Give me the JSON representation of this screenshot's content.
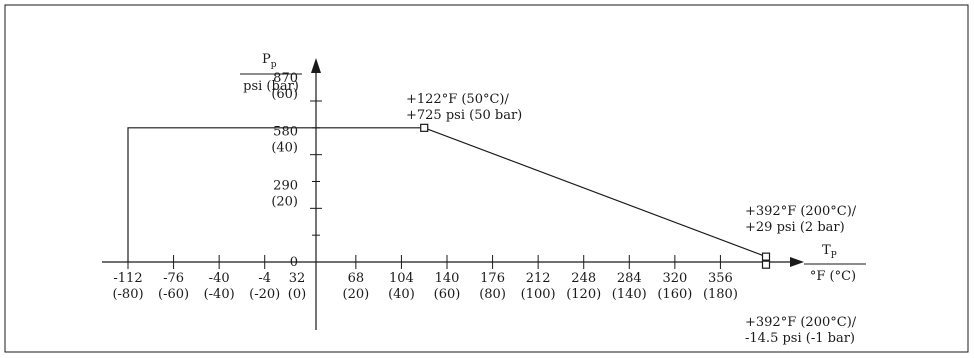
{
  "chart_data": {
    "type": "line",
    "y_axis": {
      "label_main": "P",
      "label_sub": "p",
      "unit": "psi (bar)",
      "ticks": [
        {
          "value": 0,
          "psi": "0",
          "bar": ""
        },
        {
          "value": 290,
          "psi": "290",
          "bar": "(20)"
        },
        {
          "value": 580,
          "psi": "580",
          "bar": "(40)"
        },
        {
          "value": 870,
          "psi": "870",
          "bar": "(60)"
        }
      ]
    },
    "x_axis": {
      "label_main": "T",
      "label_sub": "P",
      "unit": "°F (°C)",
      "ticks": [
        {
          "value": -112,
          "f": "-112",
          "c": "(-80)"
        },
        {
          "value": -76,
          "f": "-76",
          "c": "(-60)"
        },
        {
          "value": -40,
          "f": "-40",
          "c": "(-40)"
        },
        {
          "value": -4,
          "f": "-4",
          "c": "(-20)"
        },
        {
          "value": 32,
          "f": "32",
          "c": "(0)"
        },
        {
          "value": 68,
          "f": "68",
          "c": "(20)"
        },
        {
          "value": 104,
          "f": "104",
          "c": "(40)"
        },
        {
          "value": 140,
          "f": "140",
          "c": "(60)"
        },
        {
          "value": 176,
          "f": "176",
          "c": "(80)"
        },
        {
          "value": 212,
          "f": "212",
          "c": "(100)"
        },
        {
          "value": 248,
          "f": "248",
          "c": "(120)"
        },
        {
          "value": 284,
          "f": "284",
          "c": "(140)"
        },
        {
          "value": 320,
          "f": "320",
          "c": "(160)"
        },
        {
          "value": 356,
          "f": "356",
          "c": "(180)"
        }
      ]
    },
    "series": [
      {
        "points": [
          {
            "x": -112,
            "y": 0
          },
          {
            "x": -112,
            "y": 725
          },
          {
            "x": 122,
            "y": 725
          },
          {
            "x": 392,
            "y": 29
          }
        ]
      }
    ],
    "markers": [
      {
        "x": 122,
        "y": 725
      },
      {
        "x": 392,
        "y": 29
      },
      {
        "x": 392,
        "y": -14.5
      }
    ],
    "annotations": [
      {
        "line1": "+122°F (50°C)/",
        "line2": "+725 psi (50 bar)"
      },
      {
        "line1": "+392°F (200°C)/",
        "line2": "+29 psi (2 bar)"
      },
      {
        "line1": "+392°F (200°C)/",
        "line2": "-14.5 psi (-1 bar)"
      }
    ]
  }
}
